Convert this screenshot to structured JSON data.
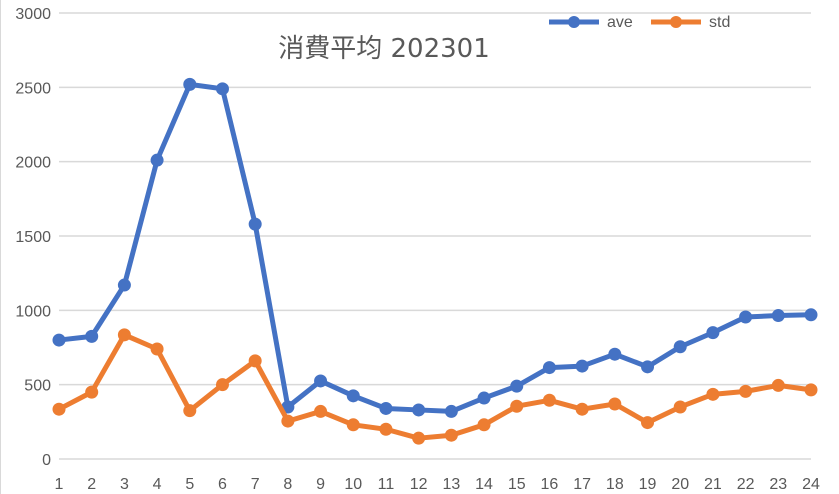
{
  "chart_data": {
    "type": "line",
    "title": "消費平均 202301",
    "xlabel": "",
    "ylabel": "",
    "x": [
      1,
      2,
      3,
      4,
      5,
      6,
      7,
      8,
      9,
      10,
      11,
      12,
      13,
      14,
      15,
      16,
      17,
      18,
      19,
      20,
      21,
      22,
      23,
      24
    ],
    "categories": [
      "1",
      "2",
      "3",
      "4",
      "5",
      "6",
      "7",
      "8",
      "9",
      "10",
      "11",
      "12",
      "13",
      "14",
      "15",
      "16",
      "17",
      "18",
      "19",
      "20",
      "21",
      "22",
      "23",
      "24"
    ],
    "series": [
      {
        "name": "ave",
        "color": "#4472C4",
        "values": [
          800,
          825,
          1170,
          2010,
          2520,
          2490,
          1580,
          350,
          525,
          425,
          340,
          330,
          320,
          410,
          490,
          615,
          625,
          705,
          620,
          755,
          850,
          955,
          965,
          970
        ]
      },
      {
        "name": "std",
        "color": "#ED7D31",
        "values": [
          335,
          450,
          835,
          740,
          325,
          500,
          660,
          255,
          320,
          230,
          200,
          140,
          160,
          230,
          355,
          395,
          335,
          370,
          245,
          350,
          435,
          455,
          495,
          465
        ]
      }
    ],
    "ylim": [
      0,
      3000
    ],
    "yticks": [
      0,
      500,
      1000,
      1500,
      2000,
      2500,
      3000
    ],
    "grid": true,
    "legend_position": "top-right",
    "markers": true
  },
  "legend": {
    "items": [
      {
        "label": "ave",
        "color": "#4472C4"
      },
      {
        "label": "std",
        "color": "#ED7D31"
      }
    ]
  },
  "colors": {
    "grid": "#d9d9d9",
    "text": "#595959",
    "background": "#ffffff"
  }
}
